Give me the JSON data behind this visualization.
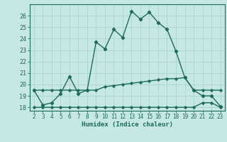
{
  "title": "",
  "xlabel": "Humidex (Indice chaleur)",
  "ylabel": "",
  "background_color": "#c5e8e2",
  "grid_color": "#aad4cc",
  "line_color": "#1e6b5c",
  "x_values": [
    2,
    3,
    4,
    5,
    6,
    7,
    8,
    9,
    10,
    11,
    12,
    13,
    14,
    15,
    16,
    17,
    18,
    19,
    20,
    21,
    22,
    23
  ],
  "y1_values": [
    19.5,
    18.2,
    18.4,
    19.2,
    20.7,
    19.2,
    19.5,
    23.7,
    23.1,
    24.8,
    24.1,
    26.4,
    25.7,
    26.3,
    25.4,
    24.8,
    22.9,
    20.6,
    19.5,
    19.0,
    19.0,
    18.1
  ],
  "y2_values": [
    19.5,
    19.5,
    19.5,
    19.5,
    19.5,
    19.5,
    19.5,
    19.5,
    19.8,
    19.9,
    20.0,
    20.1,
    20.2,
    20.3,
    20.4,
    20.5,
    20.5,
    20.6,
    19.5,
    19.5,
    19.5,
    19.5
  ],
  "y3_values": [
    18.0,
    18.0,
    18.0,
    18.0,
    18.0,
    18.0,
    18.0,
    18.0,
    18.0,
    18.0,
    18.0,
    18.0,
    18.0,
    18.0,
    18.0,
    18.0,
    18.0,
    18.0,
    18.0,
    18.4,
    18.4,
    18.0
  ],
  "ylim": [
    17.7,
    27.0
  ],
  "xlim": [
    1.5,
    23.5
  ],
  "yticks": [
    18,
    19,
    20,
    21,
    22,
    23,
    24,
    25,
    26
  ],
  "xticks": [
    2,
    3,
    4,
    5,
    6,
    7,
    8,
    9,
    10,
    11,
    12,
    13,
    14,
    15,
    16,
    17,
    18,
    19,
    20,
    21,
    22,
    23
  ]
}
